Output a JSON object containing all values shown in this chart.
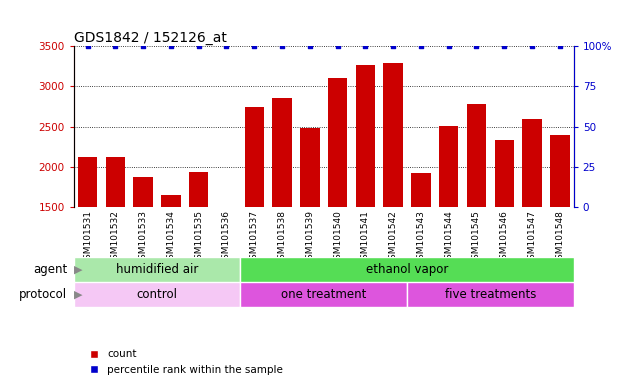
{
  "title": "GDS1842 / 152126_at",
  "samples": [
    "GSM101531",
    "GSM101532",
    "GSM101533",
    "GSM101534",
    "GSM101535",
    "GSM101536",
    "GSM101537",
    "GSM101538",
    "GSM101539",
    "GSM101540",
    "GSM101541",
    "GSM101542",
    "GSM101543",
    "GSM101544",
    "GSM101545",
    "GSM101546",
    "GSM101547",
    "GSM101548"
  ],
  "counts": [
    2130,
    2130,
    1880,
    1650,
    1940,
    1510,
    2750,
    2850,
    2480,
    3110,
    3260,
    3290,
    1930,
    2510,
    2780,
    2340,
    2600,
    2400
  ],
  "percentile_ranks": [
    100,
    100,
    100,
    100,
    100,
    100,
    100,
    100,
    100,
    100,
    100,
    100,
    100,
    100,
    100,
    100,
    100,
    100
  ],
  "bar_color": "#cc0000",
  "dot_color": "#0000cc",
  "ylim_left": [
    1500,
    3500
  ],
  "ylim_right": [
    0,
    100
  ],
  "yticks_left": [
    1500,
    2000,
    2500,
    3000,
    3500
  ],
  "yticks_right": [
    0,
    25,
    50,
    75,
    100
  ],
  "ytick_labels_right": [
    "0",
    "25",
    "50",
    "75",
    "100%"
  ],
  "grid_color": "#000000",
  "agent_groups": [
    {
      "label": "humidified air",
      "start": 0,
      "end": 6,
      "color": "#aae8aa"
    },
    {
      "label": "ethanol vapor",
      "start": 6,
      "end": 18,
      "color": "#55dd55"
    }
  ],
  "protocol_groups": [
    {
      "label": "control",
      "start": 0,
      "end": 6,
      "color": "#f0b0f0"
    },
    {
      "label": "one treatment",
      "start": 6,
      "end": 12,
      "color": "#dd55dd"
    },
    {
      "label": "five treatments",
      "start": 12,
      "end": 18,
      "color": "#dd55dd"
    }
  ],
  "xtick_bg_color": "#d8d8d8",
  "legend_count_label": "count",
  "legend_pct_label": "percentile rank within the sample",
  "bar_color_red": "#cc0000",
  "dot_color_blue": "#0000cc",
  "title_fontsize": 10,
  "tick_fontsize": 7.5,
  "label_fontsize": 8.5,
  "xtick_fontsize": 6.5
}
